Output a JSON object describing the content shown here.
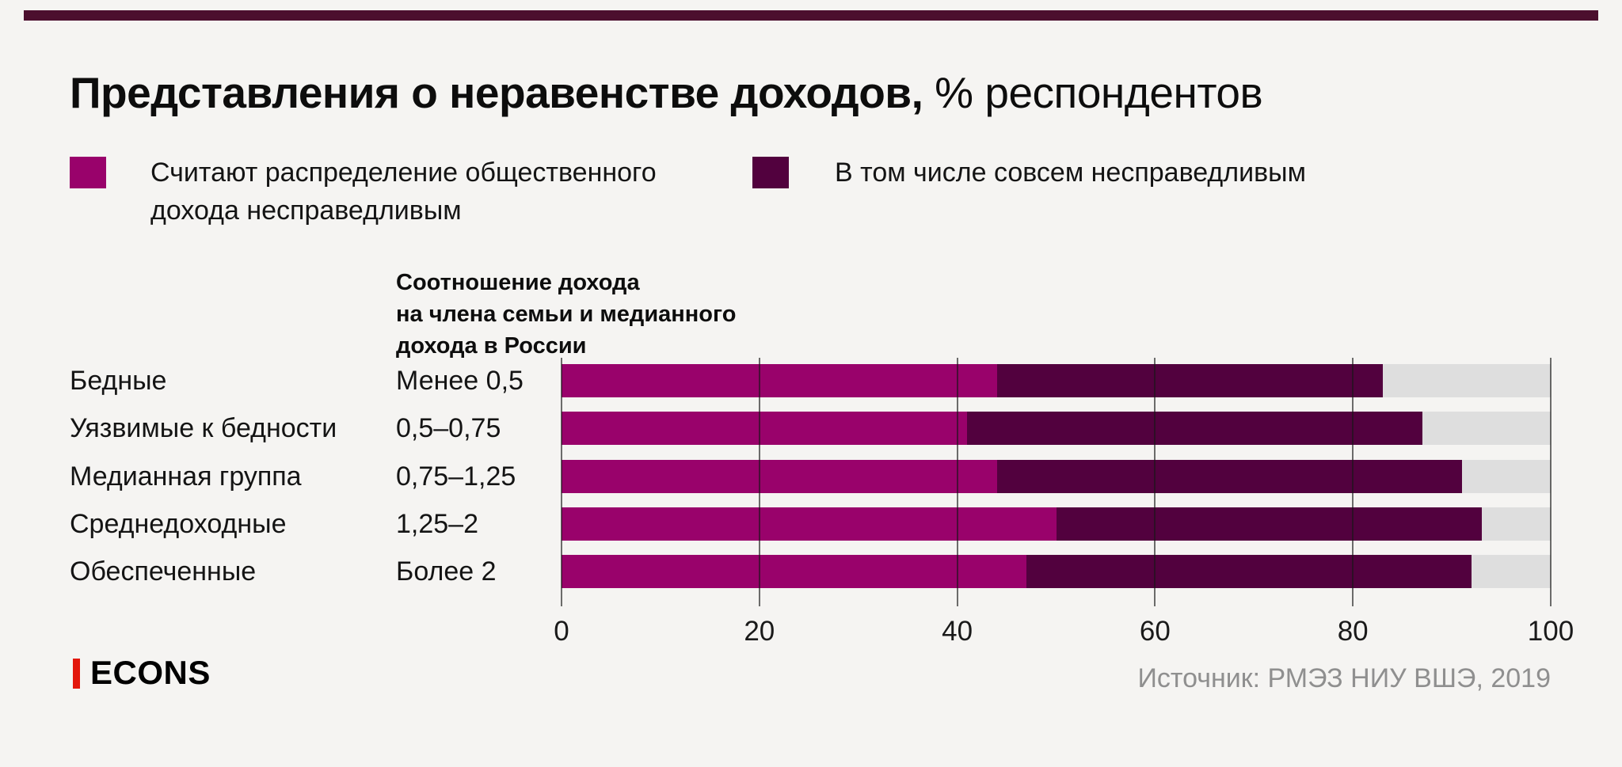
{
  "title": {
    "bold": "Представления о неравенстве доходов,",
    "regular": " % респондентов"
  },
  "legend": [
    {
      "label": "Считают распределение общественного дохода несправедливым",
      "color": "#99026B"
    },
    {
      "label": "В том числе совсем несправедливым",
      "color": "#52013E"
    }
  ],
  "column_header": {
    "lines": [
      "Соотношение дохода",
      "на члена семьи и медианного",
      "дохода в России"
    ]
  },
  "chart_data": {
    "type": "bar",
    "orientation": "horizontal",
    "title": "Представления о неравенстве доходов, % респондентов",
    "xlim": [
      0,
      100
    ],
    "x_ticks": [
      0,
      20,
      40,
      60,
      80,
      100
    ],
    "grid": true,
    "legend_position": "top",
    "series_meaning": {
      "unfair_total": "Считают распределение общественного дохода несправедливым (вся полоса)",
      "completely_unfair": "В том числе совсем несправедливым (тёмный сегмент)"
    },
    "rows": [
      {
        "group": "Бедные",
        "ratio": "Менее 0,5",
        "unfair_total": 83,
        "completely_unfair": 39
      },
      {
        "group": "Уязвимые к бедности",
        "ratio": "0,5–0,75",
        "unfair_total": 87,
        "completely_unfair": 46
      },
      {
        "group": "Медианная группа",
        "ratio": "0,75–1,25",
        "unfair_total": 91,
        "completely_unfair": 47
      },
      {
        "group": "Среднедоходные",
        "ratio": "1,25–2",
        "unfair_total": 93,
        "completely_unfair": 43
      },
      {
        "group": "Обеспеченные",
        "ratio": "Более 2",
        "unfair_total": 92,
        "completely_unfair": 45
      }
    ],
    "colors": {
      "unfair": "#99026B",
      "completely": "#52013E",
      "track": "#DEDEDE",
      "accent_rule": "#4C0F2E"
    }
  },
  "footer": {
    "logo": "ECONS",
    "source": "Источник: РМЭЗ НИУ ВШЭ, 2019"
  }
}
